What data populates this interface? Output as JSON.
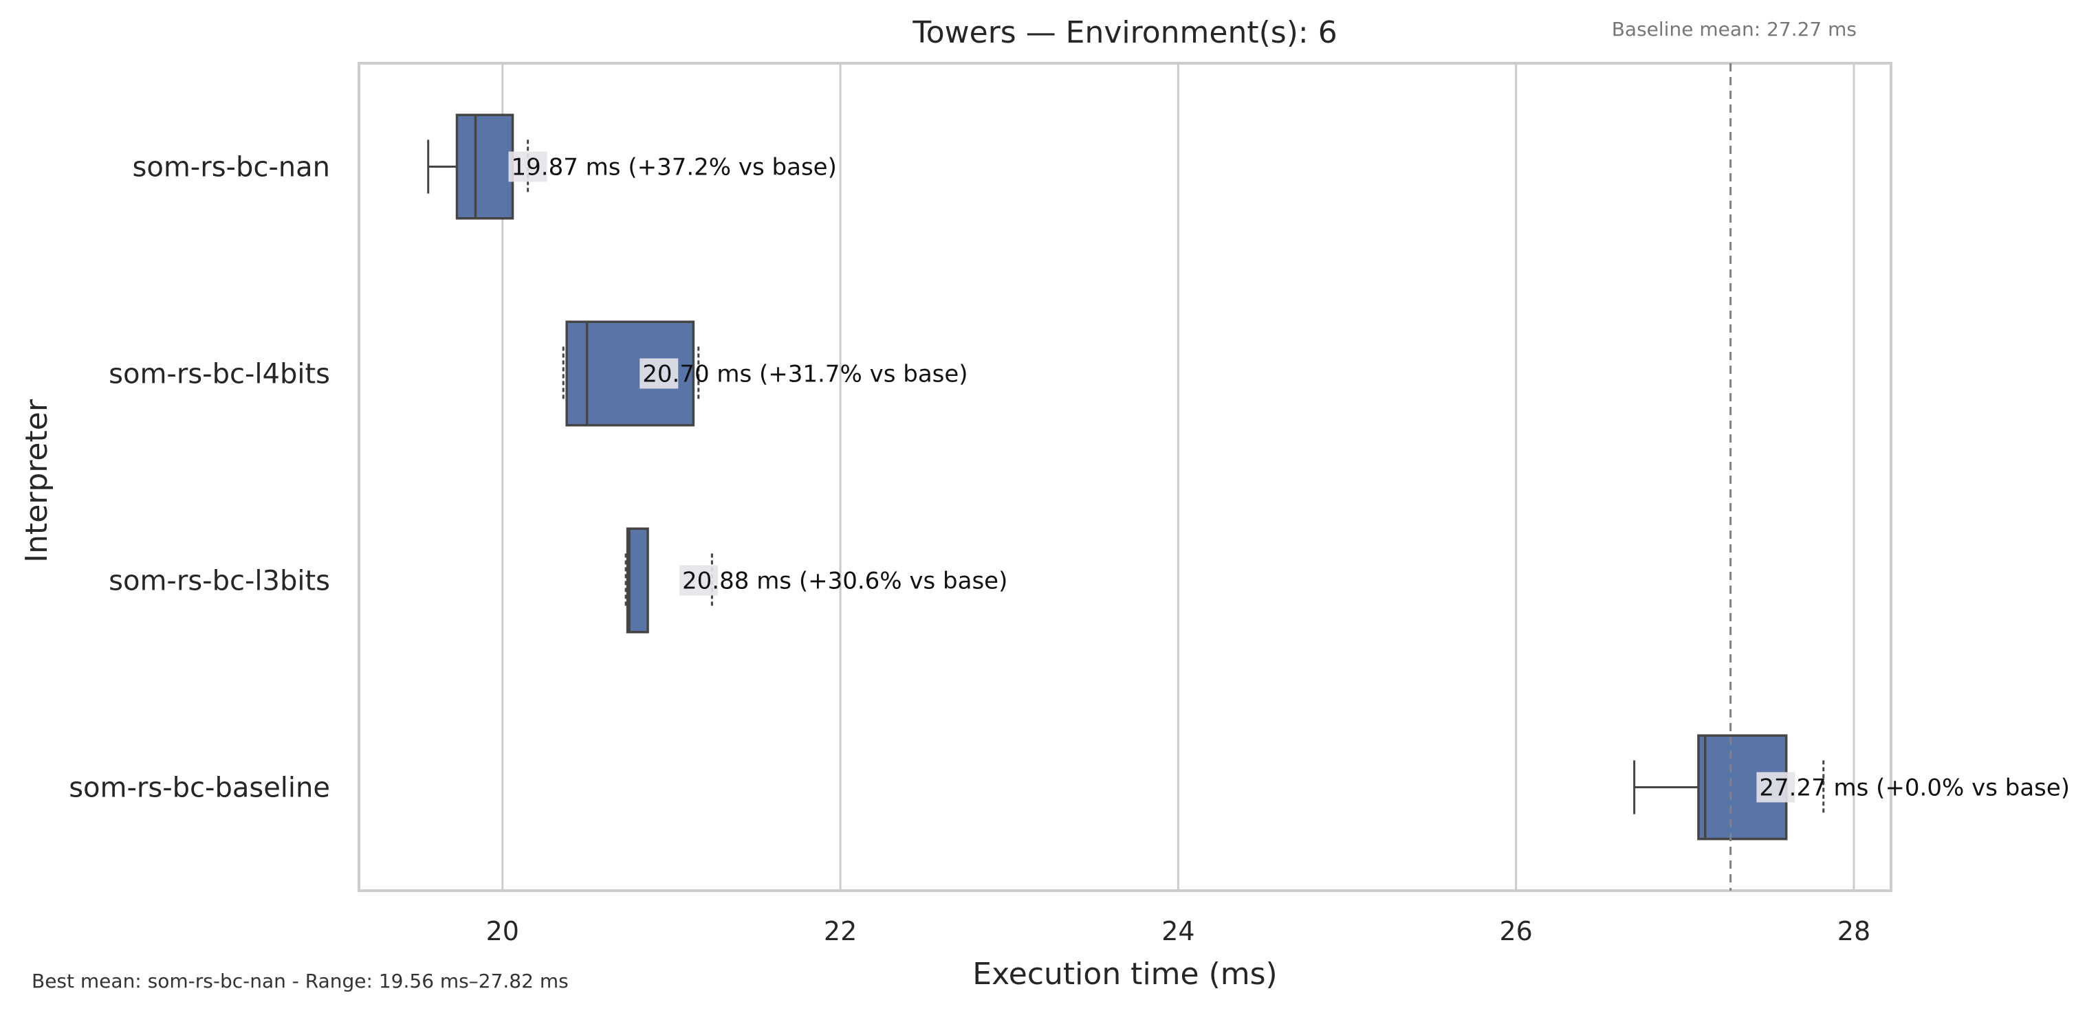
{
  "chart_data": {
    "type": "boxplot",
    "orientation": "horizontal",
    "title": "Towers — Environment(s): 6",
    "xlabel": "Execution time (ms)",
    "ylabel": "Interpreter",
    "xlim": [
      19.15,
      28.22
    ],
    "xticks": [
      20,
      22,
      24,
      26,
      28
    ],
    "grid": "vertical",
    "box_color": "#5975a8",
    "edge_color": "#454545",
    "baseline": {
      "value": 27.27,
      "label": "Baseline mean: 27.27 ms"
    },
    "footer": "Best mean: som-rs-bc-nan - Range: 19.56 ms–27.82 ms",
    "categories": [
      "som-rs-bc-nan",
      "som-rs-bc-l4bits",
      "som-rs-bc-l3bits",
      "som-rs-bc-baseline"
    ],
    "boxes": [
      {
        "name": "som-rs-bc-nan",
        "whisker_low": 19.56,
        "q1": 19.73,
        "median": 19.84,
        "q3": 20.06,
        "whisker_high": 20.06,
        "outliers": [
          20.15
        ],
        "annotation": "19.87 ms  (+37.2% vs base)"
      },
      {
        "name": "som-rs-bc-l4bits",
        "whisker_low": 20.38,
        "q1": 20.38,
        "median": 20.5,
        "q3": 21.13,
        "whisker_high": 21.13,
        "outliers": [
          20.36,
          21.16
        ],
        "annotation": "20.70 ms  (+31.7% vs base)"
      },
      {
        "name": "som-rs-bc-l3bits",
        "whisker_low": 20.74,
        "q1": 20.74,
        "median": 20.75,
        "q3": 20.86,
        "whisker_high": 20.86,
        "outliers": [
          20.73,
          21.24
        ],
        "annotation": "20.88 ms  (+30.6% vs base)"
      },
      {
        "name": "som-rs-bc-baseline",
        "whisker_low": 26.7,
        "q1": 27.08,
        "median": 27.12,
        "q3": 27.6,
        "whisker_high": 27.6,
        "outliers": [
          27.82
        ],
        "annotation": "27.27 ms  (+0.0% vs base)"
      }
    ]
  }
}
